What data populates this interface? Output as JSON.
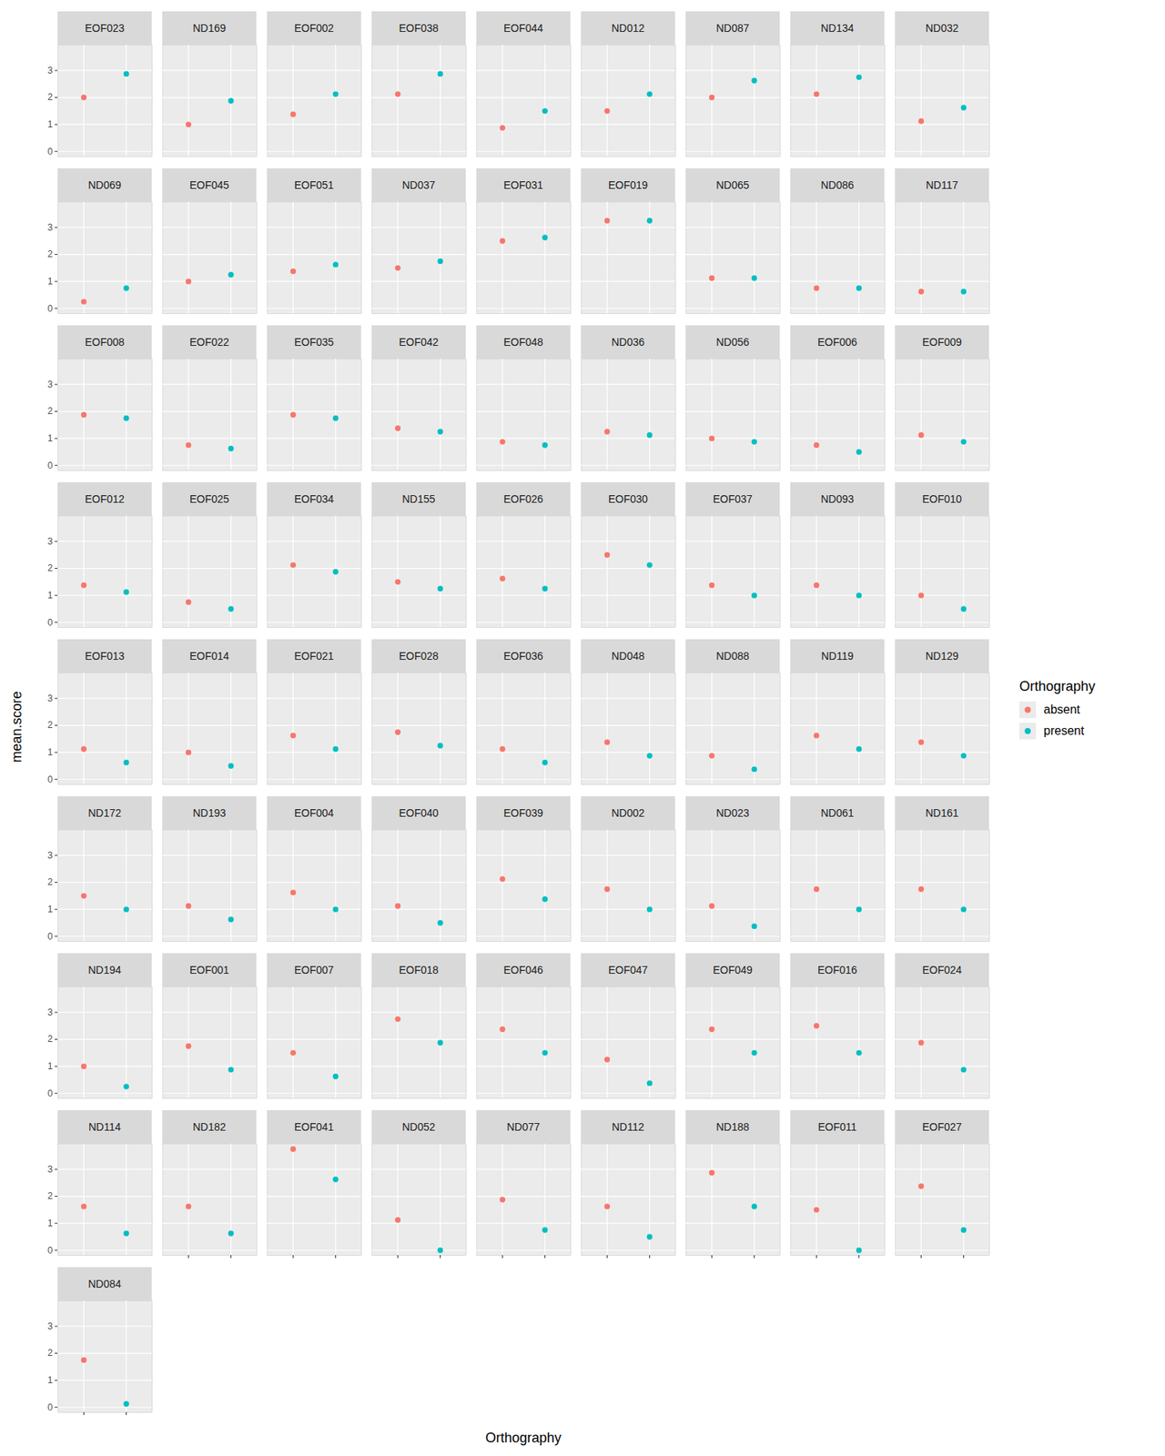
{
  "chart_data": {
    "type": "scatter",
    "x_label": "Orthography",
    "y_label": "mean.score",
    "legend_title": "Orthography",
    "legend": "right",
    "grid": true,
    "tick_labels": "y",
    "ylim": [
      -0.19,
      3.94
    ],
    "yticks": [
      0,
      1,
      2,
      3
    ],
    "categories": [
      "EOF023",
      "ND169",
      "EOF002",
      "EOF038",
      "EOF044",
      "ND012",
      "ND087",
      "ND134",
      "ND032",
      "ND069",
      "EOF045",
      "EOF051",
      "ND037",
      "EOF031",
      "EOF019",
      "ND065",
      "ND086",
      "ND117",
      "EOF008",
      "EOF022",
      "EOF035",
      "EOF042",
      "EOF048",
      "ND036",
      "ND056",
      "EOF006",
      "EOF009",
      "EOF012",
      "EOF025",
      "EOF034",
      "ND155",
      "EOF026",
      "EOF030",
      "EOF037",
      "ND093",
      "EOF010",
      "EOF013",
      "EOF014",
      "EOF021",
      "EOF028",
      "EOF036",
      "ND048",
      "ND088",
      "ND119",
      "ND129",
      "ND172",
      "ND193",
      "EOF004",
      "EOF040",
      "EOF039",
      "ND002",
      "ND023",
      "ND061",
      "ND161",
      "ND194",
      "EOF001",
      "EOF007",
      "EOF018",
      "EOF046",
      "EOF047",
      "EOF049",
      "EOF016",
      "EOF024",
      "ND114",
      "ND182",
      "EOF041",
      "ND052",
      "ND077",
      "ND112",
      "ND188",
      "EOF011",
      "EOF027",
      "ND084"
    ],
    "series": [
      {
        "name": "absent",
        "color": "#F8766D",
        "marker": "circle",
        "values": [
          2,
          1,
          1.375,
          2.125,
          0.875,
          1.5,
          2,
          2.125,
          1.125,
          0.25,
          1,
          1.375,
          1.5,
          2.5,
          3.25,
          1.125,
          0.75,
          0.625,
          1.875,
          0.75,
          1.875,
          1.375,
          0.875,
          1.25,
          1,
          0.75,
          1.125,
          1.375,
          0.75,
          2.125,
          1.5,
          1.625,
          2.5,
          1.375,
          1.375,
          1,
          1.125,
          1,
          1.625,
          1.75,
          1.125,
          1.375,
          0.875,
          1.625,
          1.375,
          1.5,
          1.125,
          1.625,
          1.125,
          2.125,
          1.75,
          1.125,
          1.75,
          1.75,
          1,
          1.75,
          1.5,
          2.75,
          2.375,
          1.25,
          2.375,
          2.5,
          1.875,
          1.625,
          1.625,
          3.75,
          1.125,
          1.875,
          1.625,
          2.875,
          1.5,
          2.375,
          1.75
        ]
      },
      {
        "name": "present",
        "color": "#00BFC4",
        "marker": "circle",
        "values": [
          2.875,
          1.875,
          2.125,
          2.875,
          1.5,
          2.125,
          2.625,
          2.75,
          1.625,
          0.75,
          1.25,
          1.625,
          1.75,
          2.625,
          3.25,
          1.125,
          0.75,
          0.625,
          1.75,
          0.625,
          1.75,
          1.25,
          0.75,
          1.125,
          0.875,
          0.5,
          0.875,
          1.125,
          0.5,
          1.875,
          1.25,
          1.25,
          2.125,
          1,
          1,
          0.5,
          0.625,
          0.5,
          1.125,
          1.25,
          0.625,
          0.875,
          0.375,
          1.125,
          0.875,
          1,
          0.625,
          1,
          0.5,
          1.375,
          1,
          0.375,
          1,
          1,
          0.25,
          0.875,
          0.625,
          1.875,
          1.5,
          0.375,
          1.5,
          1.5,
          0.875,
          0.625,
          0.625,
          2.625,
          0,
          0.75,
          0.5,
          1.625,
          0,
          0.75,
          0.125
        ]
      }
    ]
  }
}
